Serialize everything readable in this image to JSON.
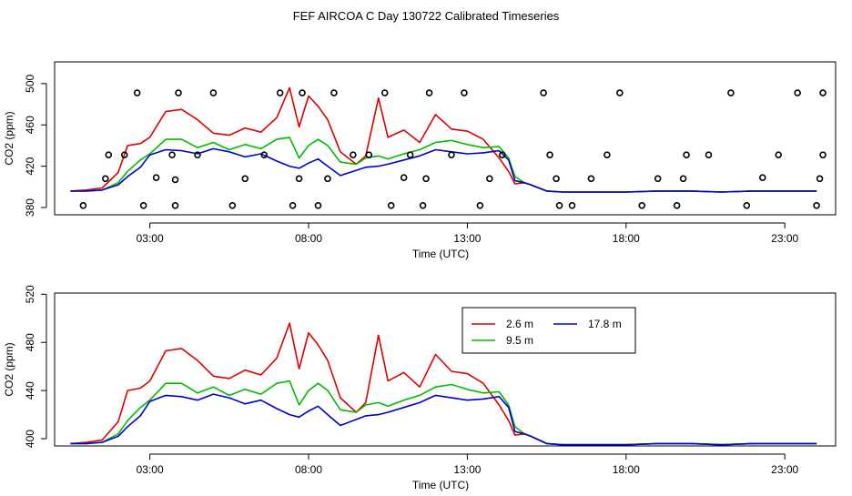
{
  "title": "FEF AIRCOA C  Day 130722  Calibrated Timeseries",
  "chart_data": [
    {
      "type": "line",
      "panel": "top",
      "xlabel": "Time (UTC)",
      "ylabel": "CO2 (ppm)",
      "xlim": [
        0.0,
        24.6
      ],
      "ylim": [
        373,
        521
      ],
      "xticks": [
        3,
        8,
        13,
        18,
        23
      ],
      "xtick_labels": [
        "03:00",
        "08:00",
        "13:00",
        "18:00",
        "23:00"
      ],
      "yticks": [
        380,
        420,
        460,
        500
      ],
      "ytick_labels": [
        "380",
        "420",
        "460",
        "500"
      ],
      "legend": null,
      "series": [
        {
          "name": "2.6 m",
          "color": "#dd0000",
          "x": [
            0.5,
            1.0,
            1.5,
            2.0,
            2.3,
            2.7,
            3.0,
            3.5,
            4.0,
            4.5,
            5.0,
            5.5,
            6.0,
            6.5,
            7.0,
            7.4,
            7.7,
            8.0,
            8.3,
            8.6,
            9.0,
            9.5,
            9.8,
            10.2,
            10.5,
            11.0,
            11.5,
            12.0,
            12.5,
            13.0,
            13.5,
            14.0,
            14.3,
            14.5,
            14.8,
            15.0,
            15.5,
            16.0,
            17.0,
            18.0,
            19.0,
            20.0,
            21.0,
            22.0,
            23.0,
            24.0
          ],
          "y": [
            396,
            397,
            399,
            414,
            440,
            442,
            448,
            473,
            475,
            465,
            452,
            450,
            457,
            453,
            467,
            496,
            458,
            488,
            478,
            465,
            434,
            422,
            430,
            486,
            448,
            455,
            443,
            470,
            456,
            454,
            446,
            428,
            415,
            403,
            404,
            402,
            396,
            395,
            395,
            395,
            396,
            396,
            395,
            396,
            396,
            396
          ]
        },
        {
          "name": "9.5 m",
          "color": "#00bb00",
          "x": [
            0.5,
            1.0,
            1.5,
            2.0,
            2.3,
            2.7,
            3.0,
            3.5,
            4.0,
            4.5,
            5.0,
            5.5,
            6.0,
            6.5,
            7.0,
            7.4,
            7.7,
            8.0,
            8.3,
            8.6,
            9.0,
            9.5,
            9.8,
            10.2,
            10.5,
            11.0,
            11.5,
            12.0,
            12.5,
            13.0,
            13.5,
            14.0,
            14.3,
            14.5,
            14.8,
            15.0,
            15.5,
            16.0,
            17.0,
            18.0,
            19.0,
            20.0,
            21.0,
            22.0,
            23.0,
            24.0
          ],
          "y": [
            396,
            396,
            397,
            404,
            415,
            426,
            432,
            446,
            446,
            438,
            443,
            436,
            441,
            437,
            446,
            448,
            428,
            440,
            446,
            440,
            424,
            422,
            428,
            430,
            427,
            432,
            436,
            443,
            445,
            441,
            438,
            439,
            428,
            410,
            404,
            402,
            396,
            395,
            395,
            395,
            396,
            396,
            395,
            396,
            396,
            396
          ]
        },
        {
          "name": "17.8 m",
          "color": "#0000cc",
          "x": [
            0.5,
            1.0,
            1.5,
            2.0,
            2.3,
            2.7,
            3.0,
            3.5,
            4.0,
            4.5,
            5.0,
            5.5,
            6.0,
            6.5,
            7.0,
            7.4,
            7.7,
            8.0,
            8.3,
            8.6,
            9.0,
            9.5,
            9.8,
            10.2,
            10.5,
            11.0,
            11.5,
            12.0,
            12.5,
            13.0,
            13.5,
            14.0,
            14.3,
            14.5,
            14.8,
            15.0,
            15.5,
            16.0,
            17.0,
            18.0,
            19.0,
            20.0,
            21.0,
            22.0,
            23.0,
            24.0
          ],
          "y": [
            396,
            396,
            397,
            402,
            410,
            419,
            431,
            436,
            435,
            432,
            437,
            434,
            429,
            432,
            425,
            420,
            418,
            423,
            427,
            420,
            411,
            416,
            419,
            420,
            422,
            426,
            430,
            436,
            434,
            432,
            433,
            435,
            426,
            406,
            404,
            402,
            396,
            395,
            395,
            395,
            396,
            396,
            395,
            396,
            396,
            396
          ]
        }
      ],
      "points": {
        "name": "calibration samples",
        "x": [
          0.9,
          1.6,
          1.7,
          2.2,
          2.6,
          2.8,
          3.2,
          3.7,
          3.8,
          3.8,
          3.9,
          4.5,
          5.0,
          5.6,
          6.0,
          6.6,
          7.1,
          7.5,
          7.7,
          7.8,
          8.3,
          8.6,
          8.8,
          9.4,
          9.9,
          10.4,
          10.6,
          11.0,
          11.2,
          11.6,
          11.7,
          11.8,
          12.5,
          12.9,
          13.4,
          13.7,
          14.1,
          15.4,
          15.6,
          15.8,
          15.9,
          16.3,
          16.9,
          17.4,
          17.8,
          18.5,
          19.0,
          19.6,
          19.8,
          19.9,
          20.6,
          21.3,
          21.8,
          22.3,
          22.8,
          23.4,
          24.0,
          24.1,
          24.2,
          24.2
        ],
        "y": [
          382,
          408,
          431,
          431,
          491,
          382,
          409,
          431,
          382,
          407,
          491,
          431,
          491,
          382,
          408,
          431,
          491,
          382,
          408,
          491,
          382,
          408,
          491,
          431,
          431,
          491,
          382,
          409,
          431,
          382,
          408,
          491,
          431,
          491,
          382,
          408,
          431,
          491,
          431,
          408,
          382,
          382,
          408,
          431,
          491,
          382,
          408,
          382,
          408,
          431,
          431,
          491,
          382,
          409,
          431,
          491,
          382,
          408,
          431,
          491
        ]
      }
    },
    {
      "type": "line",
      "panel": "bottom",
      "xlabel": "Time (UTC)",
      "ylabel": "CO2 (ppm)",
      "xlim": [
        0.0,
        24.6
      ],
      "ylim": [
        394,
        521
      ],
      "xticks": [
        3,
        8,
        13,
        18,
        23
      ],
      "xtick_labels": [
        "03:00",
        "08:00",
        "13:00",
        "18:00",
        "23:00"
      ],
      "yticks": [
        400,
        440,
        480,
        520
      ],
      "ytick_labels": [
        "400",
        "440",
        "480",
        "520"
      ],
      "legend": "top-right",
      "series": [
        {
          "name": "2.6 m",
          "color": "#dd0000",
          "x": [
            0.5,
            1.0,
            1.5,
            2.0,
            2.3,
            2.7,
            3.0,
            3.5,
            4.0,
            4.5,
            5.0,
            5.5,
            6.0,
            6.5,
            7.0,
            7.4,
            7.7,
            8.0,
            8.3,
            8.6,
            9.0,
            9.5,
            9.8,
            10.2,
            10.5,
            11.0,
            11.5,
            12.0,
            12.5,
            13.0,
            13.5,
            14.0,
            14.3,
            14.5,
            14.8,
            15.0,
            15.5,
            16.0,
            17.0,
            18.0,
            19.0,
            20.0,
            21.0,
            22.0,
            23.0,
            24.0
          ],
          "y": [
            396,
            397,
            399,
            414,
            440,
            442,
            448,
            473,
            475,
            465,
            452,
            450,
            457,
            453,
            467,
            496,
            458,
            488,
            478,
            465,
            434,
            422,
            430,
            486,
            448,
            455,
            443,
            470,
            456,
            454,
            446,
            428,
            415,
            403,
            404,
            402,
            396,
            395,
            395,
            395,
            396,
            396,
            395,
            396,
            396,
            396
          ]
        },
        {
          "name": "9.5 m",
          "color": "#00bb00",
          "x": [
            0.5,
            1.0,
            1.5,
            2.0,
            2.3,
            2.7,
            3.0,
            3.5,
            4.0,
            4.5,
            5.0,
            5.5,
            6.0,
            6.5,
            7.0,
            7.4,
            7.7,
            8.0,
            8.3,
            8.6,
            9.0,
            9.5,
            9.8,
            10.2,
            10.5,
            11.0,
            11.5,
            12.0,
            12.5,
            13.0,
            13.5,
            14.0,
            14.3,
            14.5,
            14.8,
            15.0,
            15.5,
            16.0,
            17.0,
            18.0,
            19.0,
            20.0,
            21.0,
            22.0,
            23.0,
            24.0
          ],
          "y": [
            396,
            396,
            397,
            404,
            415,
            426,
            432,
            446,
            446,
            438,
            443,
            436,
            441,
            437,
            446,
            448,
            428,
            440,
            446,
            440,
            424,
            422,
            428,
            430,
            427,
            432,
            436,
            443,
            445,
            441,
            438,
            439,
            428,
            410,
            404,
            402,
            396,
            395,
            395,
            395,
            396,
            396,
            395,
            396,
            396,
            396
          ]
        },
        {
          "name": "17.8 m",
          "color": "#0000cc",
          "x": [
            0.5,
            1.0,
            1.5,
            2.0,
            2.3,
            2.7,
            3.0,
            3.5,
            4.0,
            4.5,
            5.0,
            5.5,
            6.0,
            6.5,
            7.0,
            7.4,
            7.7,
            8.0,
            8.3,
            8.6,
            9.0,
            9.5,
            9.8,
            10.2,
            10.5,
            11.0,
            11.5,
            12.0,
            12.5,
            13.0,
            13.5,
            14.0,
            14.3,
            14.5,
            14.8,
            15.0,
            15.5,
            16.0,
            17.0,
            18.0,
            19.0,
            20.0,
            21.0,
            22.0,
            23.0,
            24.0
          ],
          "y": [
            396,
            396,
            397,
            402,
            410,
            419,
            431,
            436,
            435,
            432,
            437,
            434,
            429,
            432,
            425,
            420,
            418,
            423,
            427,
            420,
            411,
            416,
            419,
            420,
            422,
            426,
            430,
            436,
            434,
            432,
            433,
            435,
            426,
            406,
            404,
            402,
            396,
            395,
            395,
            395,
            396,
            396,
            395,
            396,
            396,
            396
          ]
        }
      ]
    }
  ]
}
